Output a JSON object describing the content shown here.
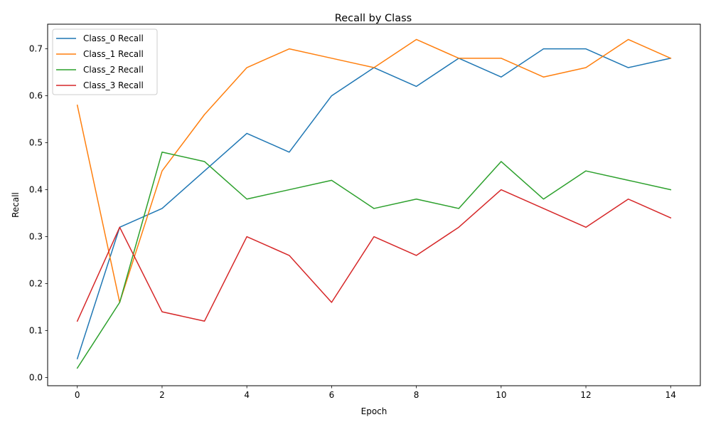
{
  "chart_data": {
    "type": "line",
    "title": "Recall by Class",
    "xlabel": "Epoch",
    "ylabel": "Recall",
    "x": [
      0,
      1,
      2,
      3,
      4,
      5,
      6,
      7,
      8,
      9,
      10,
      11,
      12,
      13,
      14
    ],
    "xlim": [
      -0.7,
      14.7
    ],
    "ylim": [
      -0.0175,
      0.7525
    ],
    "xticks": [
      0,
      2,
      4,
      6,
      8,
      10,
      12,
      14
    ],
    "yticks": [
      0.0,
      0.1,
      0.2,
      0.3,
      0.4,
      0.5,
      0.6,
      0.7
    ],
    "ytick_labels": [
      "0.0",
      "0.1",
      "0.2",
      "0.3",
      "0.4",
      "0.5",
      "0.6",
      "0.7"
    ],
    "grid": false,
    "legend_position": "top-left",
    "series": [
      {
        "name": "Class_0 Recall",
        "color": "#1f77b4",
        "values": [
          0.04,
          0.32,
          0.36,
          0.44,
          0.52,
          0.48,
          0.6,
          0.66,
          0.62,
          0.68,
          0.64,
          0.7,
          0.7,
          0.66,
          0.68
        ]
      },
      {
        "name": "Class_1 Recall",
        "color": "#ff7f0e",
        "values": [
          0.58,
          0.16,
          0.44,
          0.56,
          0.66,
          0.7,
          0.68,
          0.66,
          0.72,
          0.68,
          0.68,
          0.64,
          0.66,
          0.72,
          0.68
        ]
      },
      {
        "name": "Class_2 Recall",
        "color": "#2ca02c",
        "values": [
          0.02,
          0.16,
          0.48,
          0.46,
          0.38,
          0.4,
          0.42,
          0.36,
          0.38,
          0.36,
          0.46,
          0.38,
          0.44,
          0.42,
          0.4
        ]
      },
      {
        "name": "Class_3 Recall",
        "color": "#d62728",
        "values": [
          0.12,
          0.32,
          0.14,
          0.12,
          0.3,
          0.26,
          0.16,
          0.3,
          0.26,
          0.32,
          0.4,
          0.36,
          0.32,
          0.38,
          0.34
        ]
      }
    ]
  }
}
